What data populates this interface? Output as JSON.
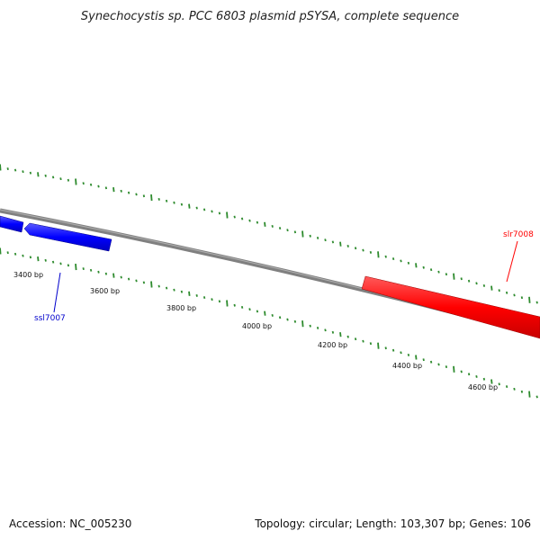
{
  "title": "Synechocystis sp. PCC 6803 plasmid pSYSA, complete sequence",
  "footer": {
    "accession": "Accession: NC_005230",
    "summary": "Topology: circular; Length: 103,307 bp; Genes: 106"
  },
  "colors": {
    "backbone": "#808080",
    "tick": "#2e8b2e",
    "forward_gene": "#ff0000",
    "reverse_gene": "#0000ff"
  },
  "scale_labels": [
    "3400 bp",
    "3600 bp",
    "3800 bp",
    "4000 bp",
    "4200 bp",
    "4400 bp",
    "4600 bp"
  ],
  "genes": [
    {
      "name": "ssl7007",
      "strand": "reverse",
      "color": "#0000cc"
    },
    {
      "name": "slr7008",
      "strand": "forward",
      "color": "#ff0000"
    }
  ]
}
